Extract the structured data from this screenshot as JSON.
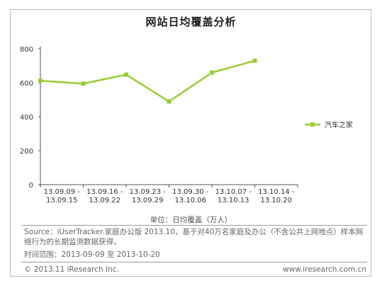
{
  "chart_data": {
    "type": "line",
    "title": "网站日均覆盖分析",
    "categories": [
      [
        "13.09.09 -",
        "13.09.15"
      ],
      [
        "13.09.16 -",
        "13.09.22"
      ],
      [
        "13.09.23 -",
        "13.09.29"
      ],
      [
        "13.09.30 -",
        "13.10.06"
      ],
      [
        "13.10.07 -",
        "13.10.13"
      ],
      [
        "13.10.14 -",
        "13.10.20"
      ]
    ],
    "series": [
      {
        "name": "汽车之家",
        "values": [
          612,
          595,
          648,
          490,
          660,
          730
        ],
        "color": "#99cc33"
      }
    ],
    "ylim": [
      0,
      800
    ],
    "yticks": [
      "0",
      "200",
      "400",
      "600",
      "800"
    ],
    "ylabel": "",
    "xlabel": "单位：日均覆盖（万人）",
    "legend": "right",
    "grid": false
  },
  "footer": {
    "source": "Source：iUserTracker.家庭办公版 2013.10，基于对40万名家庭及办公（不含公共上网地点）样本网络行为的长期监测数据获得。",
    "period": "时间范围：2013-09-09 至 2013-10-20",
    "copyright": "© 2013.11 iResearch Inc.",
    "website": "www.iresearch.com.cn"
  }
}
